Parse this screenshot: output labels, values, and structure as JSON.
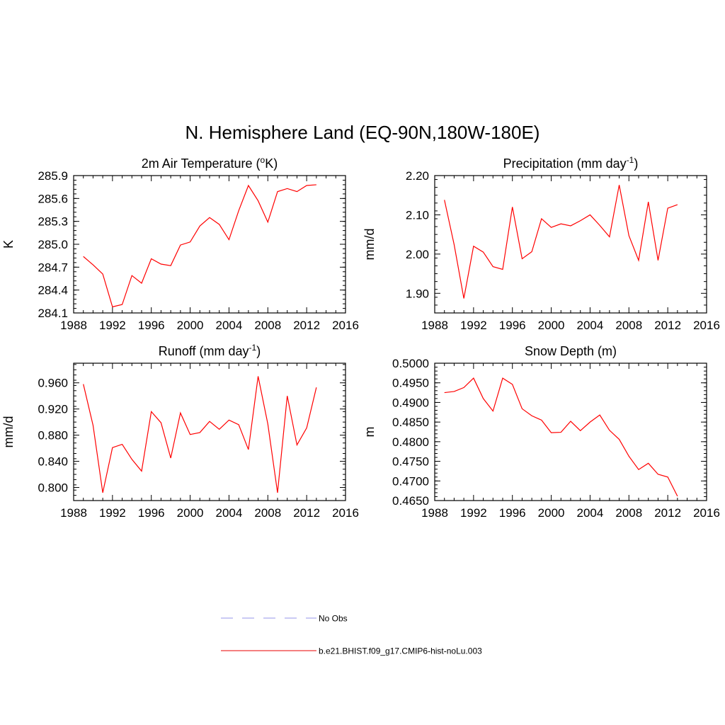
{
  "title": "N. Hemisphere Land (EQ-90N,180W-180E)",
  "chart_data": [
    {
      "type": "line",
      "title_main": "2m Air Temperature (",
      "title_sup": "o",
      "title_end": "K)",
      "ylabel": "K",
      "xlim": [
        1988,
        2016
      ],
      "ylim": [
        284.1,
        285.9
      ],
      "xticks": [
        "1988",
        "1992",
        "1996",
        "2000",
        "2004",
        "2008",
        "2012",
        "2016"
      ],
      "yticks": [
        "284.1",
        "284.4",
        "284.7",
        "285.0",
        "285.3",
        "285.6",
        "285.9"
      ],
      "x": [
        1989,
        1990,
        1991,
        1992,
        1993,
        1994,
        1995,
        1996,
        1997,
        1998,
        1999,
        2000,
        2001,
        2002,
        2003,
        2004,
        2005,
        2006,
        2007,
        2008,
        2009,
        2010,
        2011,
        2012,
        2013
      ],
      "series": [
        {
          "values": [
            284.84,
            284.73,
            284.61,
            284.18,
            284.21,
            284.59,
            284.49,
            284.81,
            284.74,
            284.72,
            284.99,
            285.03,
            285.24,
            285.35,
            285.26,
            285.06,
            285.44,
            285.77,
            285.57,
            285.29,
            285.69,
            285.73,
            285.69,
            285.77,
            285.78
          ]
        }
      ]
    },
    {
      "type": "line",
      "title_main": "Precipitation (mm day",
      "title_sup": "-1",
      "title_end": ")",
      "ylabel": "mm/d",
      "xlim": [
        1988,
        2016
      ],
      "ylim": [
        1.85,
        2.2
      ],
      "xticks": [
        "1988",
        "1992",
        "1996",
        "2000",
        "2004",
        "2008",
        "2012",
        "2016"
      ],
      "yticks": [
        "1.90",
        "2.00",
        "2.10",
        "2.20"
      ],
      "x": [
        1989,
        1990,
        1991,
        1992,
        1993,
        1994,
        1995,
        1996,
        1997,
        1998,
        1999,
        2000,
        2001,
        2002,
        2003,
        2004,
        2005,
        2006,
        2007,
        2008,
        2009,
        2010,
        2011,
        2012,
        2013
      ],
      "series": [
        {
          "values": [
            2.138,
            2.024,
            1.887,
            2.02,
            2.005,
            1.968,
            1.961,
            2.12,
            1.988,
            2.006,
            2.09,
            2.068,
            2.077,
            2.072,
            2.085,
            2.1,
            2.073,
            2.044,
            2.176,
            2.047,
            1.984,
            2.133,
            1.984,
            2.117,
            2.126
          ]
        }
      ]
    },
    {
      "type": "line",
      "title_main": "Runoff (mm day",
      "title_sup": "-1",
      "title_end": ")",
      "ylabel": "mm/d",
      "xlim": [
        1988,
        2016
      ],
      "ylim": [
        0.78,
        0.99
      ],
      "xticks": [
        "1988",
        "1992",
        "1996",
        "2000",
        "2004",
        "2008",
        "2012",
        "2016"
      ],
      "yticks": [
        "0.800",
        "0.840",
        "0.880",
        "0.920",
        "0.960"
      ],
      "x": [
        1989,
        1990,
        1991,
        1992,
        1993,
        1994,
        1995,
        1996,
        1997,
        1998,
        1999,
        2000,
        2001,
        2002,
        2003,
        2004,
        2005,
        2006,
        2007,
        2008,
        2009,
        2010,
        2011,
        2012,
        2013
      ],
      "series": [
        {
          "values": [
            0.958,
            0.895,
            0.792,
            0.861,
            0.866,
            0.843,
            0.825,
            0.916,
            0.899,
            0.845,
            0.914,
            0.881,
            0.884,
            0.901,
            0.889,
            0.903,
            0.896,
            0.858,
            0.97,
            0.897,
            0.792,
            0.94,
            0.865,
            0.891,
            0.953
          ]
        }
      ]
    },
    {
      "type": "line",
      "title_main": "Snow Depth (m)",
      "title_sup": "",
      "title_end": "",
      "ylabel": "m",
      "xlim": [
        1988,
        2016
      ],
      "ylim": [
        0.465,
        0.5
      ],
      "xticks": [
        "1988",
        "1992",
        "1996",
        "2000",
        "2004",
        "2008",
        "2012",
        "2016"
      ],
      "yticks": [
        "0.4650",
        "0.4700",
        "0.4750",
        "0.4800",
        "0.4850",
        "0.4900",
        "0.4950",
        "0.5000"
      ],
      "x": [
        1989,
        1990,
        1991,
        1992,
        1993,
        1994,
        1995,
        1996,
        1997,
        1998,
        1999,
        2000,
        2001,
        2002,
        2003,
        2004,
        2005,
        2006,
        2007,
        2008,
        2009,
        2010,
        2011,
        2012,
        2013
      ],
      "series": [
        {
          "values": [
            0.4925,
            0.4928,
            0.4938,
            0.4962,
            0.491,
            0.4878,
            0.4962,
            0.4946,
            0.4884,
            0.4866,
            0.4855,
            0.4823,
            0.4824,
            0.4852,
            0.4828,
            0.485,
            0.4868,
            0.4829,
            0.4806,
            0.4763,
            0.4729,
            0.4745,
            0.4717,
            0.471,
            0.4661
          ]
        }
      ]
    }
  ],
  "legend": [
    {
      "label": "No Obs",
      "color": "#aaaaee",
      "dash": true
    },
    {
      "label": "b.e21.BHIST.f09_g17.CMIP6-hist-noLu.003",
      "color": "#ee3333",
      "dash": false
    }
  ],
  "line_color": "#ff0000"
}
